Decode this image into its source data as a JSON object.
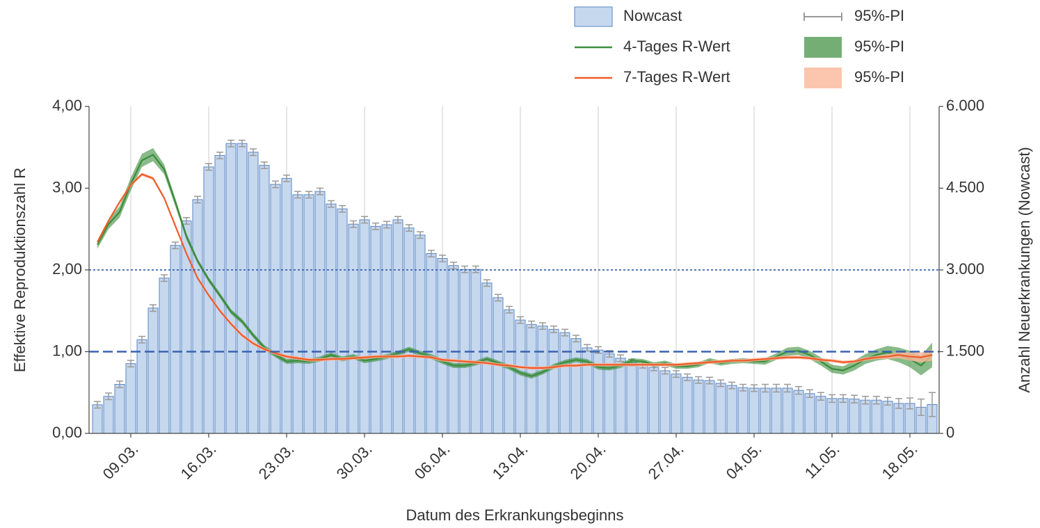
{
  "chart_data": {
    "type": "combo",
    "xlabel": "Datum des Erkrankungsbeginns",
    "ylabel": "Effektive Reproduktionszahl R",
    "y2label": "Anzahl Neuerkrankungen (Nowcast)",
    "categories": [
      null,
      null,
      null,
      "09.03.",
      null,
      null,
      null,
      null,
      null,
      null,
      "16.03.",
      null,
      null,
      null,
      null,
      null,
      null,
      "23.03.",
      null,
      null,
      null,
      null,
      null,
      null,
      "30.03.",
      null,
      null,
      null,
      null,
      null,
      null,
      "06.04.",
      null,
      null,
      null,
      null,
      null,
      null,
      "13.04.",
      null,
      null,
      null,
      null,
      null,
      null,
      "20.04.",
      null,
      null,
      null,
      null,
      null,
      null,
      "27.04.",
      null,
      null,
      null,
      null,
      null,
      null,
      "04.05.",
      null,
      null,
      null,
      null,
      null,
      null,
      "11.05.",
      null,
      null,
      null,
      null,
      null,
      null,
      "18.05.",
      null,
      null
    ],
    "ylim": [
      0,
      4
    ],
    "yticks": [
      {
        "value": 0,
        "label": "0,00"
      },
      {
        "value": 1,
        "label": "1,00"
      },
      {
        "value": 2,
        "label": "2,00"
      },
      {
        "value": 3,
        "label": "3,00"
      },
      {
        "value": 4,
        "label": "4,00"
      }
    ],
    "y2lim": [
      0,
      6000
    ],
    "y2ticks": [
      0,
      {
        "value": 1500,
        "label": "1.500"
      },
      {
        "value": 3000,
        "label": "3.000"
      },
      {
        "value": 4500,
        "label": "4.500"
      },
      {
        "value": 6000,
        "label": "6.000"
      }
    ],
    "grid": true,
    "legend": "top-right",
    "hlines": [
      {
        "value": 2,
        "style": "dotted"
      },
      {
        "value": 1,
        "style": "dashed"
      }
    ],
    "series": [
      {
        "name": "Nowcast",
        "type": "bar",
        "axis": "y2",
        "color": "#c6d8ee",
        "pi_name": "95%-PI",
        "values": [
          525,
          680,
          900,
          1280,
          1720,
          2300,
          2850,
          3450,
          3900,
          4290,
          4890,
          5100,
          5320,
          5320,
          5160,
          4920,
          4570,
          4680,
          4380,
          4380,
          4440,
          4210,
          4120,
          3840,
          3920,
          3800,
          3830,
          3920,
          3770,
          3640,
          3300,
          3210,
          3080,
          3010,
          3010,
          2760,
          2490,
          2270,
          2080,
          2000,
          1970,
          1910,
          1850,
          1740,
          1570,
          1530,
          1460,
          1380,
          1300,
          1260,
          1210,
          1150,
          1090,
          1030,
          980,
          970,
          920,
          880,
          840,
          830,
          830,
          830,
          830,
          790,
          730,
          680,
          640,
          640,
          630,
          610,
          610,
          590,
          550,
          550,
          480,
          530
        ],
        "errors": [
          60,
          60,
          60,
          60,
          60,
          60,
          60,
          60,
          60,
          60,
          60,
          60,
          60,
          60,
          60,
          60,
          60,
          60,
          60,
          60,
          60,
          60,
          60,
          60,
          60,
          60,
          60,
          60,
          60,
          60,
          60,
          60,
          60,
          60,
          60,
          60,
          60,
          60,
          60,
          60,
          60,
          60,
          60,
          60,
          60,
          60,
          60,
          60,
          60,
          60,
          60,
          60,
          60,
          60,
          60,
          60,
          60,
          60,
          60,
          60,
          70,
          70,
          70,
          70,
          70,
          70,
          70,
          70,
          70,
          70,
          70,
          70,
          90,
          100,
          150,
          220
        ]
      },
      {
        "name": "4-Tages R-Wert",
        "type": "line",
        "color": "#3a8c3a",
        "pi_name": "95%-PI",
        "values": [
          2.31,
          2.56,
          2.71,
          3.05,
          3.34,
          3.41,
          3.23,
          2.83,
          2.41,
          2.11,
          1.88,
          1.69,
          1.49,
          1.37,
          1.2,
          1.05,
          0.96,
          0.88,
          0.89,
          0.88,
          0.91,
          0.96,
          0.91,
          0.94,
          0.89,
          0.91,
          0.94,
          0.98,
          1.03,
          0.98,
          0.94,
          0.88,
          0.83,
          0.83,
          0.86,
          0.91,
          0.86,
          0.81,
          0.74,
          0.7,
          0.75,
          0.82,
          0.87,
          0.9,
          0.88,
          0.81,
          0.8,
          0.83,
          0.89,
          0.88,
          0.84,
          0.86,
          0.82,
          0.82,
          0.84,
          0.89,
          0.86,
          0.88,
          0.89,
          0.88,
          0.88,
          0.94,
          1.0,
          1.01,
          0.96,
          0.88,
          0.79,
          0.77,
          0.83,
          0.91,
          0.96,
          0.99,
          0.96,
          0.91,
          0.83,
          0.96
        ],
        "errors": [
          0.05,
          0.06,
          0.07,
          0.08,
          0.08,
          0.08,
          0.06,
          0.05,
          0.04,
          0.03,
          0.03,
          0.03,
          0.03,
          0.03,
          0.03,
          0.03,
          0.03,
          0.03,
          0.03,
          0.03,
          0.03,
          0.03,
          0.03,
          0.03,
          0.03,
          0.03,
          0.03,
          0.03,
          0.03,
          0.03,
          0.03,
          0.03,
          0.03,
          0.03,
          0.03,
          0.03,
          0.03,
          0.03,
          0.03,
          0.03,
          0.03,
          0.03,
          0.03,
          0.03,
          0.03,
          0.03,
          0.03,
          0.03,
          0.03,
          0.03,
          0.03,
          0.03,
          0.03,
          0.03,
          0.03,
          0.03,
          0.03,
          0.03,
          0.03,
          0.03,
          0.04,
          0.04,
          0.05,
          0.05,
          0.05,
          0.05,
          0.05,
          0.05,
          0.06,
          0.06,
          0.07,
          0.08,
          0.09,
          0.1,
          0.12,
          0.15
        ]
      },
      {
        "name": "7-Tages R-Wert",
        "type": "line",
        "color": "#f05a28",
        "band_color": "#fbb79a",
        "pi_name": "95%-PI",
        "values": [
          2.34,
          2.6,
          2.83,
          3.04,
          3.17,
          3.12,
          2.88,
          2.54,
          2.2,
          1.9,
          1.69,
          1.5,
          1.34,
          1.2,
          1.1,
          1.03,
          0.98,
          0.94,
          0.92,
          0.9,
          0.9,
          0.91,
          0.91,
          0.92,
          0.93,
          0.94,
          0.94,
          0.94,
          0.95,
          0.94,
          0.93,
          0.9,
          0.89,
          0.88,
          0.87,
          0.86,
          0.84,
          0.83,
          0.81,
          0.8,
          0.8,
          0.81,
          0.83,
          0.83,
          0.84,
          0.84,
          0.84,
          0.84,
          0.84,
          0.84,
          0.84,
          0.84,
          0.84,
          0.85,
          0.86,
          0.87,
          0.88,
          0.89,
          0.89,
          0.9,
          0.91,
          0.92,
          0.93,
          0.93,
          0.92,
          0.9,
          0.89,
          0.87,
          0.88,
          0.91,
          0.93,
          0.94,
          0.96,
          0.94,
          0.93,
          0.96
        ],
        "errors": [
          0.02,
          0.02,
          0.02,
          0.02,
          0.02,
          0.02,
          0.02,
          0.02,
          0.02,
          0.02,
          0.02,
          0.02,
          0.02,
          0.02,
          0.02,
          0.02,
          0.02,
          0.02,
          0.02,
          0.02,
          0.02,
          0.02,
          0.02,
          0.02,
          0.02,
          0.02,
          0.02,
          0.02,
          0.02,
          0.02,
          0.02,
          0.02,
          0.02,
          0.02,
          0.02,
          0.02,
          0.02,
          0.02,
          0.02,
          0.02,
          0.02,
          0.02,
          0.02,
          0.02,
          0.02,
          0.02,
          0.02,
          0.02,
          0.02,
          0.02,
          0.02,
          0.02,
          0.02,
          0.02,
          0.02,
          0.02,
          0.02,
          0.02,
          0.02,
          0.02,
          0.02,
          0.02,
          0.02,
          0.02,
          0.02,
          0.02,
          0.02,
          0.02,
          0.02,
          0.02,
          0.02,
          0.03,
          0.04,
          0.05,
          0.06,
          0.07
        ]
      }
    ]
  }
}
